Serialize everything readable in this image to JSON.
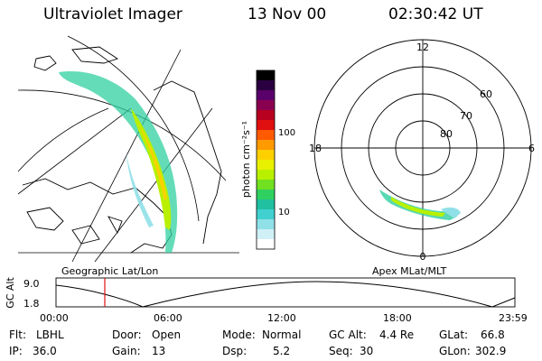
{
  "header": {
    "title": "Ultraviolet Imager",
    "date": "13 Nov 00",
    "time": "02:30:42 UT"
  },
  "colorbar": {
    "unit_label": "photon cm⁻²s⁻¹",
    "ticks": [
      "100",
      "10"
    ],
    "colors": [
      "#000000",
      "#2a0040",
      "#5a006a",
      "#8a0050",
      "#b80020",
      "#e01010",
      "#ff5a00",
      "#ff9a00",
      "#ffd000",
      "#e8f000",
      "#b8f000",
      "#70e020",
      "#30d060",
      "#20c0a0",
      "#40d0d0",
      "#90e0e8",
      "#d0f0f8",
      "#ffffff"
    ]
  },
  "maps": {
    "left_caption": "Geographic Lat/Lon",
    "right_caption": "Apex MLat/MLT"
  },
  "polar": {
    "mlt_labels": [
      "12",
      "18",
      "6",
      "0"
    ],
    "lat_labels": [
      "60",
      "70",
      "80"
    ]
  },
  "gc_plot": {
    "axis_label": "GC Alt",
    "y_ticks": [
      "9.0",
      "1.8"
    ],
    "x_ticks": [
      "00:00",
      "06:00",
      "12:00",
      "18:00",
      "23:59"
    ],
    "marker_time": "02:30"
  },
  "info": {
    "flt_label": "Flt:",
    "flt": "LBHL",
    "ip_label": "IP:",
    "ip": "36.0",
    "door_label": "Door:",
    "door": "Open",
    "gain_label": "Gain:",
    "gain": "13",
    "mode_label": "Mode:",
    "mode": "Normal",
    "dsp_label": "Dsp:",
    "dsp": "5.2",
    "gcalt_label": "GC Alt:",
    "gcalt": "4.4 Re",
    "seq_label": "Seq:",
    "seq": "30",
    "glat_label": "GLat:",
    "glat": "66.8",
    "glon_label": "GLon:",
    "glon": "302.9"
  }
}
